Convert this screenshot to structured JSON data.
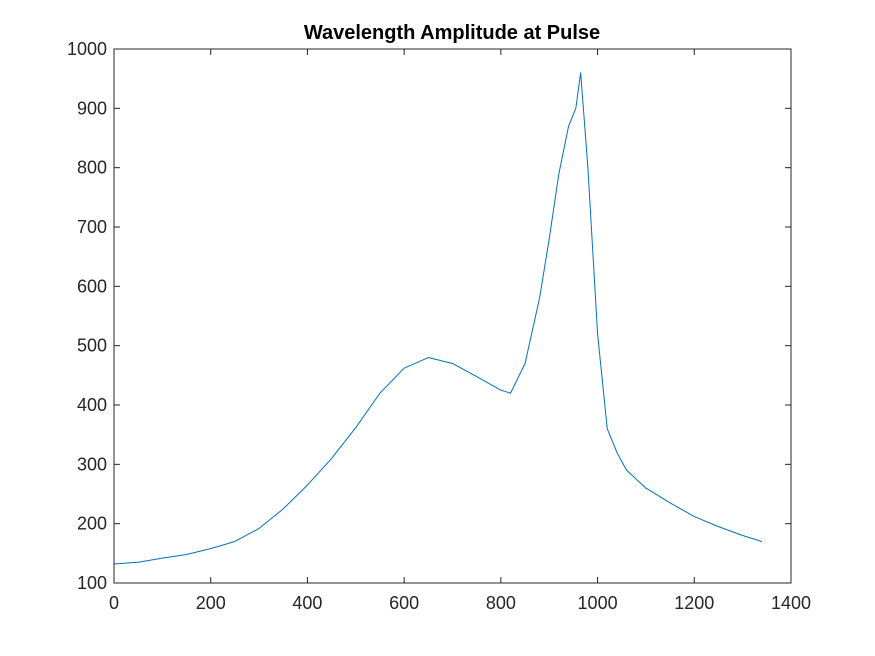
{
  "chart_data": {
    "type": "line",
    "title": "Wavelength Amplitude at Pulse",
    "xlabel": "",
    "ylabel": "",
    "xlim": [
      0,
      1400
    ],
    "ylim": [
      100,
      1000
    ],
    "x_ticks": [
      0,
      200,
      400,
      600,
      800,
      1000,
      1200,
      1400
    ],
    "y_ticks": [
      100,
      200,
      300,
      400,
      500,
      600,
      700,
      800,
      900,
      1000
    ],
    "grid": false,
    "legend": "none",
    "line_color": "#0072BD",
    "series": [
      {
        "x": [
          0,
          50,
          100,
          150,
          200,
          250,
          300,
          350,
          400,
          450,
          500,
          550,
          600,
          650,
          700,
          750,
          800,
          820,
          850,
          880,
          900,
          920,
          940,
          955,
          965,
          980,
          1000,
          1020,
          1040,
          1060,
          1100,
          1150,
          1200,
          1250,
          1300,
          1340
        ],
        "values": [
          132,
          135,
          142,
          148,
          158,
          170,
          192,
          225,
          265,
          310,
          362,
          420,
          462,
          480,
          470,
          448,
          425,
          420,
          470,
          580,
          680,
          790,
          870,
          900,
          960,
          800,
          520,
          360,
          320,
          290,
          260,
          235,
          212,
          195,
          180,
          170
        ]
      }
    ]
  }
}
